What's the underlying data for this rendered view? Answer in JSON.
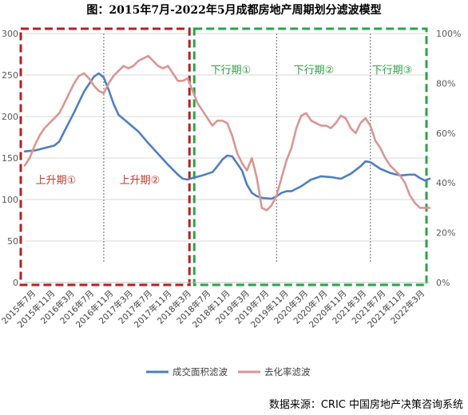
{
  "chart_data": {
    "type": "line",
    "title": "图：2015年7月-2022年5月成都房地产周期划分滤波模型",
    "x_tick_labels": [
      "2015年7月",
      "2015年11月",
      "2016年3月",
      "2016年7月",
      "2016年11月",
      "2017年3月",
      "2017年7月",
      "2017年11月",
      "2018年3月",
      "2018年7月",
      "2018年11月",
      "2019年3月",
      "2019年7月",
      "2019年11月",
      "2020年3月",
      "2020年7月",
      "2020年11月",
      "2021年3月",
      "2021年7月",
      "2021年11月",
      "2022年3月"
    ],
    "x_range": [
      "2015-07",
      "2022-05"
    ],
    "y_left": {
      "range": [
        0,
        300
      ],
      "ticks": [
        "0",
        "50",
        "100",
        "150",
        "200",
        "250",
        "300"
      ]
    },
    "y_right": {
      "range": [
        0,
        100
      ],
      "ticks": [
        "0%",
        "20%",
        "40%",
        "60%",
        "80%",
        "100%"
      ]
    },
    "series": [
      {
        "name": "成交面积滤波",
        "axis": "left",
        "color": "#4f7fbf",
        "points": [
          [
            "2015-07",
            158
          ],
          [
            "2015-09",
            159
          ],
          [
            "2015-11",
            162
          ],
          [
            "2016-01",
            165
          ],
          [
            "2016-02",
            170
          ],
          [
            "2016-03",
            182
          ],
          [
            "2016-05",
            205
          ],
          [
            "2016-07",
            230
          ],
          [
            "2016-09",
            248
          ],
          [
            "2016-10",
            252
          ],
          [
            "2016-11",
            247
          ],
          [
            "2016-12",
            232
          ],
          [
            "2017-01",
            215
          ],
          [
            "2017-02",
            202
          ],
          [
            "2017-04",
            192
          ],
          [
            "2017-06",
            182
          ],
          [
            "2017-08",
            168
          ],
          [
            "2017-10",
            155
          ],
          [
            "2017-12",
            142
          ],
          [
            "2018-02",
            130
          ],
          [
            "2018-03",
            125
          ],
          [
            "2018-04",
            124
          ],
          [
            "2018-05",
            126
          ],
          [
            "2018-07",
            129
          ],
          [
            "2018-09",
            133
          ],
          [
            "2018-10",
            140
          ],
          [
            "2018-11",
            148
          ],
          [
            "2018-12",
            153
          ],
          [
            "2019-01",
            152
          ],
          [
            "2019-03",
            135
          ],
          [
            "2019-04",
            118
          ],
          [
            "2019-05",
            108
          ],
          [
            "2019-06",
            104
          ],
          [
            "2019-07",
            102
          ],
          [
            "2019-09",
            101
          ],
          [
            "2019-10",
            104
          ],
          [
            "2019-11",
            108
          ],
          [
            "2019-12",
            110
          ],
          [
            "2020-01",
            110
          ],
          [
            "2020-03",
            116
          ],
          [
            "2020-05",
            124
          ],
          [
            "2020-07",
            128
          ],
          [
            "2020-09",
            127
          ],
          [
            "2020-11",
            125
          ],
          [
            "2021-01",
            131
          ],
          [
            "2021-03",
            140
          ],
          [
            "2021-04",
            146
          ],
          [
            "2021-05",
            145
          ],
          [
            "2021-07",
            137
          ],
          [
            "2021-09",
            132
          ],
          [
            "2021-11",
            129
          ],
          [
            "2022-01",
            130
          ],
          [
            "2022-02",
            130
          ],
          [
            "2022-03",
            126
          ],
          [
            "2022-04",
            123
          ],
          [
            "2022-05",
            125
          ]
        ]
      },
      {
        "name": "去化率滤波",
        "axis": "right",
        "color": "#d99694",
        "points": [
          [
            "2015-07",
            47
          ],
          [
            "2015-08",
            50
          ],
          [
            "2015-09",
            55
          ],
          [
            "2015-10",
            59
          ],
          [
            "2015-11",
            62
          ],
          [
            "2015-12",
            64
          ],
          [
            "2016-01",
            66
          ],
          [
            "2016-02",
            68
          ],
          [
            "2016-03",
            72
          ],
          [
            "2016-04",
            76
          ],
          [
            "2016-05",
            80
          ],
          [
            "2016-06",
            83
          ],
          [
            "2016-07",
            84
          ],
          [
            "2016-08",
            82
          ],
          [
            "2016-09",
            79
          ],
          [
            "2016-10",
            77
          ],
          [
            "2016-11",
            76
          ],
          [
            "2016-12",
            80
          ],
          [
            "2017-01",
            83
          ],
          [
            "2017-02",
            85
          ],
          [
            "2017-03",
            87
          ],
          [
            "2017-04",
            86
          ],
          [
            "2017-05",
            87
          ],
          [
            "2017-06",
            89
          ],
          [
            "2017-07",
            90
          ],
          [
            "2017-08",
            91
          ],
          [
            "2017-09",
            89
          ],
          [
            "2017-10",
            87
          ],
          [
            "2017-11",
            86
          ],
          [
            "2017-12",
            87
          ],
          [
            "2018-01",
            84
          ],
          [
            "2018-02",
            81
          ],
          [
            "2018-03",
            81
          ],
          [
            "2018-04",
            82
          ],
          [
            "2018-05",
            77
          ],
          [
            "2018-06",
            72
          ],
          [
            "2018-07",
            69
          ],
          [
            "2018-08",
            66
          ],
          [
            "2018-09",
            63
          ],
          [
            "2018-10",
            65
          ],
          [
            "2018-11",
            65
          ],
          [
            "2018-12",
            64
          ],
          [
            "2019-01",
            59
          ],
          [
            "2019-02",
            52
          ],
          [
            "2019-03",
            48
          ],
          [
            "2019-04",
            45
          ],
          [
            "2019-05",
            50
          ],
          [
            "2019-06",
            42
          ],
          [
            "2019-07",
            30
          ],
          [
            "2019-08",
            29
          ],
          [
            "2019-09",
            31
          ],
          [
            "2019-10",
            35
          ],
          [
            "2019-11",
            42
          ],
          [
            "2019-12",
            49
          ],
          [
            "2020-01",
            54
          ],
          [
            "2020-02",
            62
          ],
          [
            "2020-03",
            67
          ],
          [
            "2020-04",
            68
          ],
          [
            "2020-05",
            65
          ],
          [
            "2020-06",
            64
          ],
          [
            "2020-07",
            63
          ],
          [
            "2020-08",
            63
          ],
          [
            "2020-09",
            62
          ],
          [
            "2020-10",
            64
          ],
          [
            "2020-11",
            67
          ],
          [
            "2020-12",
            66
          ],
          [
            "2021-01",
            62
          ],
          [
            "2021-02",
            60
          ],
          [
            "2021-03",
            64
          ],
          [
            "2021-04",
            66
          ],
          [
            "2021-05",
            63
          ],
          [
            "2021-06",
            57
          ],
          [
            "2021-07",
            54
          ],
          [
            "2021-08",
            50
          ],
          [
            "2021-09",
            47
          ],
          [
            "2021-10",
            45
          ],
          [
            "2021-11",
            43
          ],
          [
            "2021-12",
            40
          ],
          [
            "2022-01",
            35
          ],
          [
            "2022-02",
            32
          ],
          [
            "2022-03",
            30
          ],
          [
            "2022-04",
            30
          ],
          [
            "2022-05",
            30
          ]
        ]
      }
    ],
    "phases": [
      {
        "label": "上升期①",
        "type": "up"
      },
      {
        "label": "上升期②",
        "type": "up"
      },
      {
        "label": "下行期①",
        "type": "down"
      },
      {
        "label": "下行期②",
        "type": "down"
      },
      {
        "label": "下行期③",
        "type": "down"
      }
    ],
    "dividers": [
      "2016-11",
      "2019-10",
      "2021-05"
    ],
    "up_box_range": [
      "2015-07",
      "2018-05"
    ],
    "down_box_range": [
      "2018-05",
      "2022-05"
    ],
    "colors": {
      "up_box": "#b22222",
      "down_box": "#2ca24a",
      "up_text": "#c0392b",
      "down_text": "#2e9e48",
      "grid": "#d9d9d9"
    },
    "legend_position": "bottom",
    "source": "数据来源：CRIC 中国房地产决策咨询系统"
  }
}
